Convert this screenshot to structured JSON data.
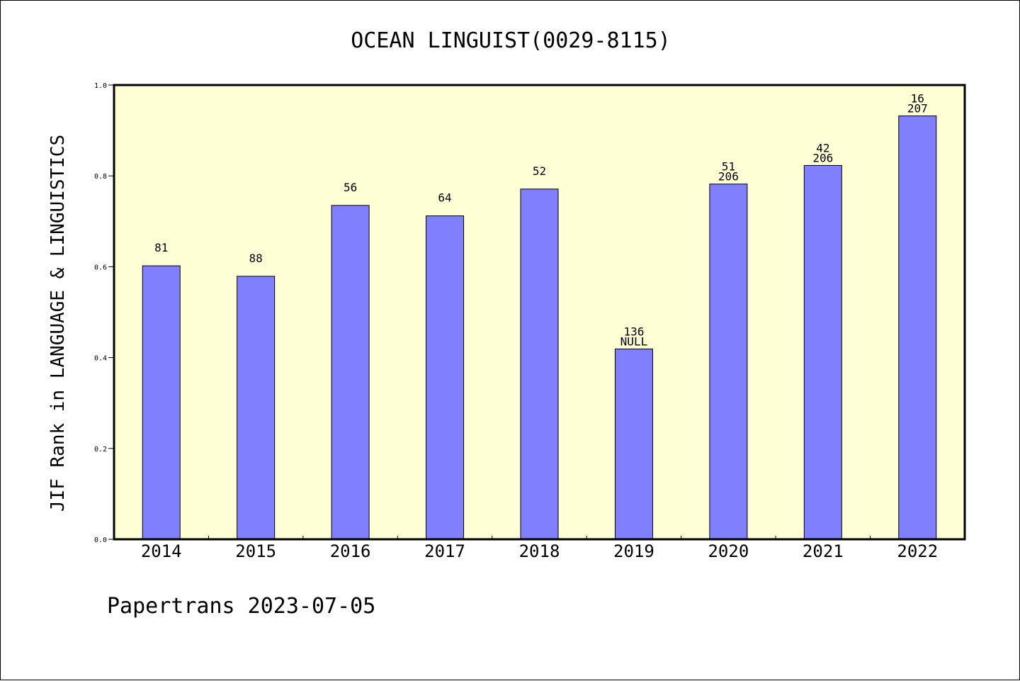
{
  "chart_data": {
    "type": "bar",
    "title": "OCEAN LINGUIST(0029-8115)",
    "ylabel": "JIF Rank in LANGUAGE & LINGUISTICS",
    "xlabel": "",
    "footer": "Papertrans 2023-07-05",
    "ylim": [
      0,
      1.0
    ],
    "yticks": [
      "0.0",
      "0.2",
      "0.4",
      "0.6",
      "0.8",
      "1.0"
    ],
    "grid": false,
    "categories": [
      "2014",
      "2015",
      "2016",
      "2017",
      "2018",
      "2019",
      "2020",
      "2021",
      "2022"
    ],
    "values": [
      0.602,
      0.579,
      0.735,
      0.712,
      0.771,
      0.419,
      0.782,
      0.823,
      0.932
    ],
    "labels": [
      {
        "top": "81",
        "bottom": ""
      },
      {
        "top": "88",
        "bottom": ""
      },
      {
        "top": "56",
        "bottom": ""
      },
      {
        "top": "64",
        "bottom": ""
      },
      {
        "top": "52",
        "bottom": ""
      },
      {
        "top": "136",
        "bottom": "NULL"
      },
      {
        "top": "51",
        "bottom": "206"
      },
      {
        "top": "42",
        "bottom": "206"
      },
      {
        "top": "16",
        "bottom": "207"
      }
    ],
    "colors": {
      "bar": "#8080ff",
      "plot_bg": "#ffffd6",
      "axis": "#000000"
    }
  }
}
